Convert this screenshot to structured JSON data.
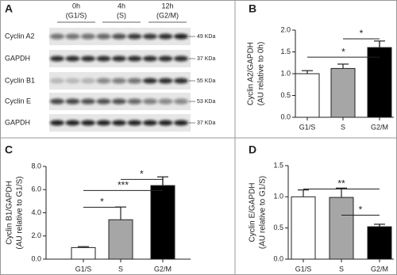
{
  "blot": {
    "panel": "A",
    "columns": [
      [
        "0h",
        "(G1/S)"
      ],
      [
        "4h",
        "(S)"
      ],
      [
        "12h",
        "(G2/M)"
      ]
    ],
    "rows": [
      [
        "Cyclin A2",
        "49 KDa"
      ],
      [
        "GAPDH",
        "37 KDa"
      ],
      [
        "Cyclin B1",
        "55 KDa"
      ],
      [
        "Cyclin E",
        "53 KDa"
      ],
      [
        "GAPDH",
        "37 KDa"
      ]
    ]
  },
  "chart_data": [
    {
      "type": "bar",
      "panel": "B",
      "ylabel": [
        "Cyclin A2/GAPDH",
        "(AU relative to 0h)"
      ],
      "categories": [
        "G1/S",
        "S",
        "G2/M"
      ],
      "values": [
        1.0,
        1.12,
        1.6
      ],
      "errors": [
        0.07,
        0.1,
        0.15
      ],
      "colors": [
        "#ffffff",
        "#a6a6a6",
        "#000000"
      ],
      "ylim": [
        0,
        2
      ],
      "yticks": [
        {
          "value": 0,
          "label": "0.0"
        },
        0.5,
        {
          "value": 1,
          "label": "1.0"
        },
        1.5,
        {
          "value": 2,
          "label": "2.0"
        }
      ],
      "annotations": [
        "*",
        "*"
      ]
    },
    {
      "type": "bar",
      "panel": "C",
      "ylabel": [
        "Cyclin B1/GAPDH",
        "(AU relative to G1/S)"
      ],
      "categories": [
        "G1/S",
        "S",
        "G2/M"
      ],
      "values": [
        1.0,
        3.4,
        6.35
      ],
      "errors": [
        0.08,
        1.1,
        0.75
      ],
      "colors": [
        "#ffffff",
        "#a6a6a6",
        "#000000"
      ],
      "ylim": [
        0,
        8
      ],
      "yticks": [
        {
          "value": 0,
          "label": "0.0"
        },
        {
          "value": 2,
          "label": "2.0"
        },
        {
          "value": 4,
          "label": "4.0"
        },
        {
          "value": 6,
          "label": "6.0"
        },
        {
          "value": 8,
          "label": "8.0"
        }
      ],
      "annotations": [
        "*",
        "***",
        "*"
      ]
    },
    {
      "type": "bar",
      "panel": "D",
      "ylabel": [
        "Cyclin E/GAPDH",
        "(AU relative to G1/S)"
      ],
      "categories": [
        "G1/S",
        "S",
        "G2/M"
      ],
      "values": [
        1.0,
        0.99,
        0.52
      ],
      "errors": [
        0.11,
        0.15,
        0.04
      ],
      "colors": [
        "#ffffff",
        "#a6a6a6",
        "#000000"
      ],
      "ylim": [
        0,
        1.5
      ],
      "yticks": [
        {
          "value": 0,
          "label": "0.0"
        },
        0.5,
        {
          "value": 1,
          "label": "1.0"
        },
        1.5
      ],
      "annotations": [
        "**",
        "*"
      ]
    }
  ]
}
